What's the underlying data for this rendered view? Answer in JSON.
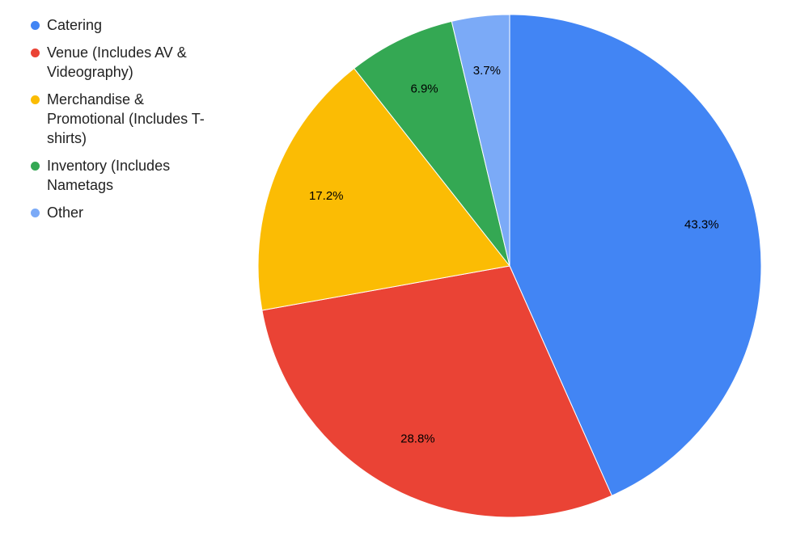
{
  "chart_data": {
    "type": "pie",
    "categories": [
      "Catering",
      "Venue (Includes AV & Videography)",
      "Merchandise & Promotional (Includes T-shirts)",
      "Inventory (Includes Nametags",
      "Other"
    ],
    "values": [
      43.3,
      28.8,
      17.2,
      6.9,
      3.7
    ],
    "value_labels": [
      "43.3%",
      "28.8%",
      "17.2%",
      "6.9%",
      "3.7%"
    ],
    "colors": [
      "#4285f4",
      "#ea4335",
      "#fbbc04",
      "#34a853",
      "#7baaf7"
    ],
    "legend": "left"
  }
}
